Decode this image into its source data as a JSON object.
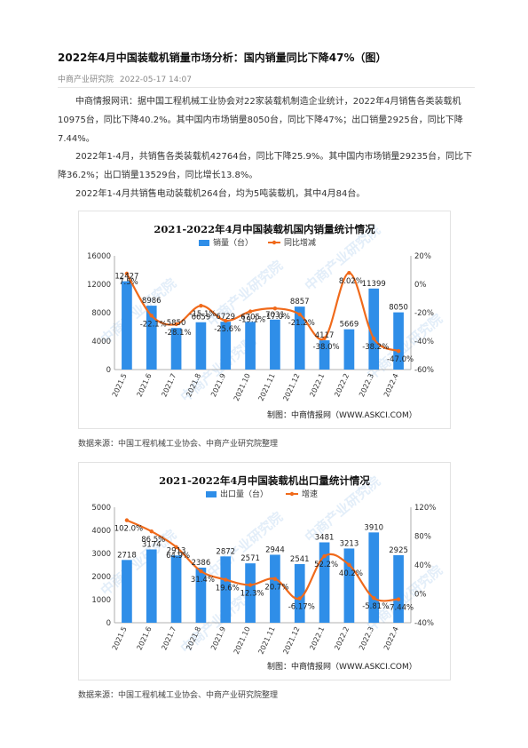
{
  "article": {
    "title": "2022年4月中国装载机销量市场分析：国内销量同比下降47%（图）",
    "source": "中商产业研究院",
    "date": "2022-05-17 14:07",
    "paragraphs": [
      "中商情报网讯：据中国工程机械工业协会对22家装载机制造企业统计，2022年4月销售各类装载机10975台，同比下降40.2%。其中国内市场销量8050台，同比下降47%；出口销量2925台，同比下降7.44%。",
      "2022年1-4月，共销售各类装载机42764台，同比下降25.9%。其中国内市场销量29235台，同比下降36.2%；出口销量13529台，同比增长13.8%。",
      "2022年1-4月共销售电动装载机264台，均为5吨装载机，其中4月84台。"
    ],
    "data_source_1": "数据来源：中国工程机械工业协会、中商产业研究院整理",
    "data_source_2": "数据来源：中国工程机械工业协会、中商产业研究院整理"
  },
  "chart_data": [
    {
      "type": "bar",
      "title": "2021-2022年4月中国装载机国内销量统计情况",
      "categories": [
        "2021.5",
        "2021.6",
        "2021.7",
        "2021.8",
        "2021.9",
        "2021.10",
        "2021.11",
        "2021.12",
        "2022.1",
        "2022.2",
        "2022.3",
        "2022.4"
      ],
      "series": [
        {
          "name": "销量（台）",
          "type": "bar",
          "axis": "left",
          "values": [
            12427,
            8986,
            5850,
            6659,
            6729,
            6705,
            7031,
            8857,
            4117,
            5669,
            11399,
            8050
          ]
        },
        {
          "name": "同比增减",
          "type": "line",
          "axis": "right",
          "values": [
            7.5,
            -22.1,
            -28.1,
            -15.1,
            -25.6,
            -19.1,
            -17.0,
            -21.2,
            -38.0,
            8.02,
            -38.2,
            -47.0
          ]
        }
      ],
      "bar_labels": [
        "12427",
        "8986",
        "5850",
        "6659",
        "6729",
        "6705",
        "7031",
        "8857",
        "4117",
        "5669",
        "11399",
        "8050"
      ],
      "line_labels": [
        "7.5%",
        "-22.1%",
        "-28.1%",
        "-15.1%",
        "-25.6%",
        "-19.1%",
        "-17.0%",
        "-21.2%",
        "-38.0%",
        "8.02%",
        "-38.2%",
        "-47.0%"
      ],
      "ylim": [
        0,
        16000
      ],
      "yticks": [
        "0",
        "4000",
        "8000",
        "12000",
        "16000"
      ],
      "y2lim": [
        -60,
        20
      ],
      "y2ticks": [
        "-60%",
        "-40%",
        "-20%",
        "0%",
        "20%"
      ],
      "credit": "制图：中商情报网（WWW.ASKCI.COM）",
      "watermark": "中商产业研究院",
      "legend": "top-center",
      "colors": {
        "bar": "#2f8ee8",
        "line": "#f06a1b"
      }
    },
    {
      "type": "bar",
      "title": "2021-2022年4月中国装载机出口量统计情况",
      "categories": [
        "2021.5",
        "2021.6",
        "2021.7",
        "2021.8",
        "2021.9",
        "2021.10",
        "2021.11",
        "2021.12",
        "2022.1",
        "2022.2",
        "2022.3",
        "2022.4"
      ],
      "series": [
        {
          "name": "出口量（台）",
          "type": "bar",
          "axis": "left",
          "values": [
            2718,
            3174,
            2913,
            2386,
            2872,
            2571,
            2944,
            2541,
            3481,
            3213,
            3910,
            2925
          ]
        },
        {
          "name": "增速",
          "type": "line",
          "axis": "right",
          "values": [
            102.0,
            86.5,
            64.9,
            31.4,
            19.6,
            12.3,
            20.7,
            -6.17,
            52.2,
            40.2,
            -5.81,
            -7.44
          ]
        }
      ],
      "bar_labels": [
        "2718",
        "3174",
        "2913",
        "2386",
        "2872",
        "2571",
        "2944",
        "2541",
        "3481",
        "3213",
        "3910",
        "2925"
      ],
      "line_labels": [
        "102.0%",
        "86.5%",
        "64.9%",
        "31.4%",
        "19.6%",
        "12.3%",
        "20.7%",
        "-6.17%",
        "52.2%",
        "40.2%",
        "-5.81%",
        "-7.44%"
      ],
      "ylim": [
        0,
        5000
      ],
      "yticks": [
        "0",
        "1000",
        "2000",
        "3000",
        "4000",
        "5000"
      ],
      "y2lim": [
        -40,
        120
      ],
      "y2ticks": [
        "-40%",
        "0%",
        "40%",
        "80%",
        "120%"
      ],
      "credit": "制图：中商情报网（WWW.ASKCI.COM）",
      "watermark": "中商产业研究院",
      "legend": "top-center",
      "colors": {
        "bar": "#2f8ee8",
        "line": "#f06a1b"
      }
    }
  ]
}
